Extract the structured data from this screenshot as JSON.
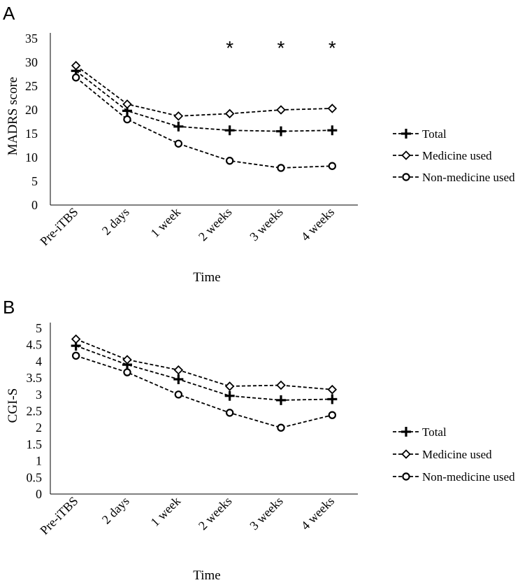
{
  "chart_data": [
    {
      "type": "line",
      "panel": "A",
      "categories": [
        "Pre-iTBS",
        "2 days",
        "1 week",
        "2 weeks",
        "3 weeks",
        "4 weeks"
      ],
      "series": [
        {
          "name": "Total",
          "marker": "plus",
          "values": [
            28.2,
            19.8,
            16.5,
            15.7,
            15.5,
            15.7
          ]
        },
        {
          "name": "Medicine used",
          "marker": "diamond",
          "values": [
            29.3,
            21.2,
            18.7,
            19.2,
            20.0,
            20.3
          ]
        },
        {
          "name": "Non-medicine used",
          "marker": "circle",
          "values": [
            26.8,
            18.0,
            12.9,
            9.3,
            7.8,
            8.2
          ]
        }
      ],
      "significance": [
        "",
        "",
        "",
        "*",
        "*",
        "*"
      ],
      "xlabel": "Time",
      "ylabel": "MADRS score",
      "ylim": [
        0,
        35
      ],
      "yticks": [
        "0",
        "5",
        "10",
        "15",
        "20",
        "25",
        "30",
        "35"
      ],
      "legend": "right"
    },
    {
      "type": "line",
      "panel": "B",
      "categories": [
        "Pre-iTBS",
        "2 days",
        "1 week",
        "2 weeks",
        "3 weeks",
        "4 weeks"
      ],
      "series": [
        {
          "name": "Total",
          "marker": "plus",
          "values": [
            4.47,
            3.9,
            3.46,
            2.96,
            2.83,
            2.86
          ]
        },
        {
          "name": "Medicine used",
          "marker": "diamond",
          "values": [
            4.67,
            4.05,
            3.74,
            3.25,
            3.28,
            3.15
          ]
        },
        {
          "name": "Non-medicine used",
          "marker": "circle",
          "values": [
            4.17,
            3.67,
            3.0,
            2.45,
            2.0,
            2.38
          ]
        }
      ],
      "significance": [
        "",
        "",
        "",
        "",
        "",
        ""
      ],
      "xlabel": "Time",
      "ylabel": "CGI-S",
      "ylim": [
        0,
        5
      ],
      "yticks": [
        "0",
        "0.5",
        "1",
        "1.5",
        "2",
        "2.5",
        "3",
        "3.5",
        "4",
        "4.5",
        "5"
      ],
      "legend": "right"
    }
  ]
}
